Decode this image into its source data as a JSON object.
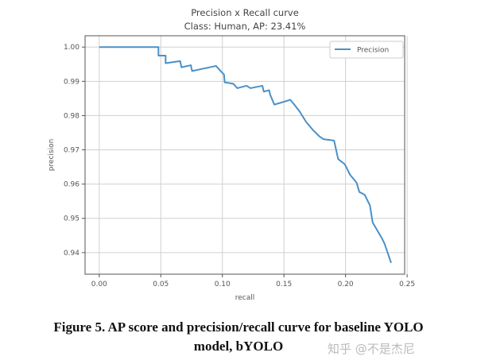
{
  "chart_data": {
    "type": "line",
    "title": "Precision x Recall curve",
    "subtitle": "Class: Human, AP: 23.41%",
    "xlabel": "recall",
    "ylabel": "precision",
    "xlim": [
      -0.0115,
      0.248
    ],
    "ylim": [
      0.9337,
      1.0033
    ],
    "xticks": [
      "0.00",
      "0.05",
      "0.10",
      "0.15",
      "0.20",
      "0.25"
    ],
    "yticks": [
      "1.00",
      "0.99",
      "0.98",
      "0.97",
      "0.96",
      "0.95",
      "0.94"
    ],
    "grid": true,
    "legend_position": "top-right",
    "series": [
      {
        "name": "Precision",
        "color": "#4a90c8",
        "x": [
          0,
          0.0481,
          0.0481,
          0.0539,
          0.0539,
          0.0657,
          0.0668,
          0.0744,
          0.0754,
          0.0948,
          0.0981,
          0.1013,
          0.1019,
          0.1088,
          0.1121,
          0.1196,
          0.1228,
          0.1325,
          0.1336,
          0.1379,
          0.139,
          0.1422,
          0.1552,
          0.1584,
          0.1627,
          0.1681,
          0.1735,
          0.1789,
          0.1821,
          0.1907,
          0.194,
          0.1994,
          0.2037,
          0.209,
          0.2112,
          0.2155,
          0.2198,
          0.222,
          0.2295,
          0.2317,
          0.237
        ],
        "y": [
          1.0,
          1.0,
          0.9975,
          0.9975,
          0.9953,
          0.9959,
          0.9941,
          0.9947,
          0.993,
          0.9945,
          0.9932,
          0.992,
          0.9897,
          0.9893,
          0.988,
          0.9887,
          0.988,
          0.9887,
          0.987,
          0.9874,
          0.9859,
          0.9832,
          0.9846,
          0.9832,
          0.9812,
          0.9781,
          0.9758,
          0.9739,
          0.9731,
          0.9727,
          0.9673,
          0.9658,
          0.9627,
          0.9604,
          0.9577,
          0.9569,
          0.9538,
          0.9488,
          0.9442,
          0.9426,
          0.937
        ]
      }
    ]
  },
  "caption": {
    "line1": "Figure 5. AP score and precision/recall curve for baseline YOLO",
    "line2": "model, bYOLO"
  },
  "watermark": "知乎 @不是杰尼"
}
